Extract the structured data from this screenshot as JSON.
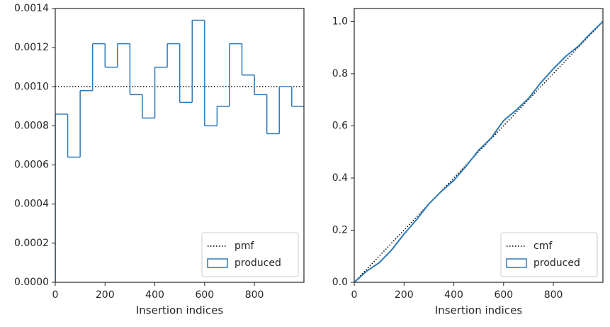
{
  "chart_data": [
    {
      "type": "histogram",
      "xlabel": "Insertion indices",
      "bins": [
        0,
        50,
        100,
        150,
        200,
        250,
        300,
        350,
        400,
        450,
        500,
        550,
        600,
        650,
        700,
        750,
        800,
        850,
        900,
        950,
        1000
      ],
      "series": [
        {
          "name": "produced",
          "color": "#2e7ab8",
          "values": [
            0.00086,
            0.00064,
            0.00098,
            0.00122,
            0.0011,
            0.00122,
            0.00096,
            0.00084,
            0.0011,
            0.00122,
            0.00092,
            0.00134,
            0.0008,
            0.0009,
            0.00122,
            0.00106,
            0.00096,
            0.00076,
            0.001,
            0.0009
          ]
        }
      ],
      "hlines": [
        {
          "name": "pmf",
          "value": 0.001,
          "color": "#000000",
          "style": "dotted"
        }
      ],
      "xlim": [
        0,
        999
      ],
      "ylim": [
        0,
        0.0014
      ],
      "xticks": [
        0,
        200,
        400,
        600,
        800
      ],
      "yticks": [
        {
          "value": 0,
          "label": "0.0000"
        },
        {
          "value": 0.0002,
          "label": "0.0002"
        },
        {
          "value": 0.0004,
          "label": "0.0004"
        },
        {
          "value": 0.0006,
          "label": "0.0006"
        },
        {
          "value": 0.0008,
          "label": "0.0008"
        },
        {
          "value": 0.001,
          "label": "0.0010"
        },
        {
          "value": 0.0012,
          "label": "0.0012"
        },
        {
          "value": 0.0014,
          "label": "0.0014"
        }
      ],
      "legend": "lower right"
    },
    {
      "type": "line",
      "xlabel": "Insertion indices",
      "series": [
        {
          "name": "cmf",
          "color": "#000000",
          "style": "dotted",
          "x": [
            0,
            999
          ],
          "values": [
            0,
            1
          ]
        },
        {
          "name": "produced",
          "color": "#2e7ab8",
          "style": "solid",
          "legend_box": true,
          "x": [
            0,
            50,
            100,
            150,
            200,
            250,
            300,
            350,
            400,
            450,
            500,
            550,
            600,
            650,
            700,
            750,
            800,
            850,
            900,
            950,
            999
          ],
          "values": [
            0,
            0.043,
            0.075,
            0.124,
            0.185,
            0.24,
            0.301,
            0.349,
            0.391,
            0.446,
            0.507,
            0.553,
            0.62,
            0.66,
            0.705,
            0.766,
            0.819,
            0.867,
            0.905,
            0.955,
            1
          ]
        }
      ],
      "xlim": [
        0,
        999
      ],
      "ylim": [
        0,
        1.05
      ],
      "xticks": [
        0,
        200,
        400,
        600,
        800
      ],
      "yticks": [
        {
          "value": 0,
          "label": "0.0"
        },
        0.2,
        0.4,
        0.6,
        0.8,
        {
          "value": 1,
          "label": "1.0"
        }
      ],
      "legend": "lower right"
    }
  ]
}
